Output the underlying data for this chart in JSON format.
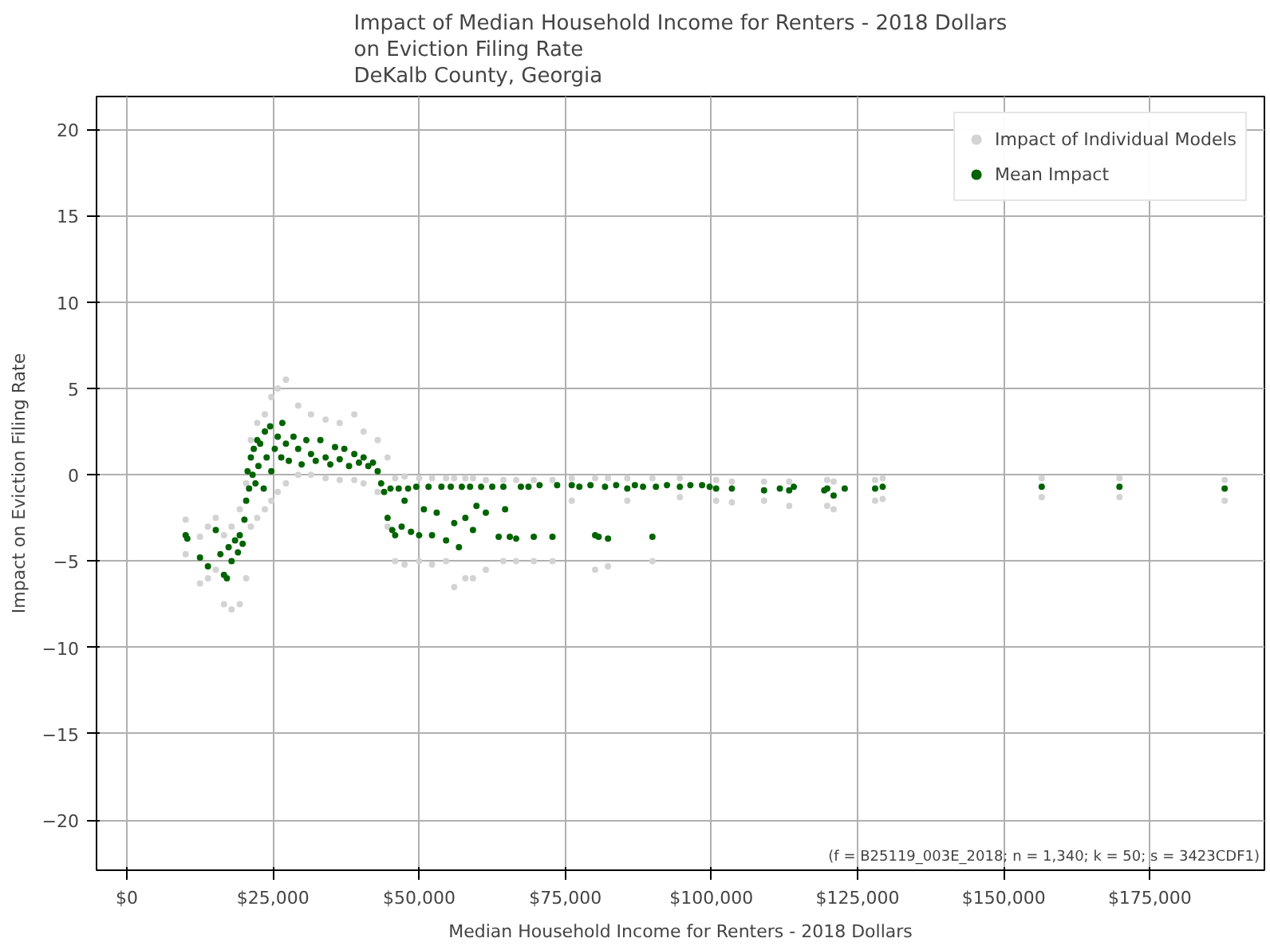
{
  "chart_data": {
    "type": "scatter",
    "title": "Impact of Median Household Income for Renters - 2018 Dollars\non Eviction Filing Rate\nDeKalb County, Georgia",
    "xlabel": "Median Household Income for Renters - 2018 Dollars",
    "ylabel": "Impact on Eviction Filing Rate",
    "annotations": [
      "(f = B25119_003E_2018; n = 1,340; k = 50; s = 3423CDF1)"
    ],
    "xlim": [
      -5200,
      194600
    ],
    "ylim": [
      -22.9,
      21.9
    ],
    "xticks": [
      {
        "value": 0,
        "label": "$0"
      },
      {
        "value": 25000,
        "label": "$25,000"
      },
      {
        "value": 50000,
        "label": "$50,000"
      },
      {
        "value": 75000,
        "label": "$75,000"
      },
      {
        "value": 100000,
        "label": "$100,000"
      },
      {
        "value": 125000,
        "label": "$125,000"
      },
      {
        "value": 150000,
        "label": "$150,000"
      },
      {
        "value": 175000,
        "label": "$175,000"
      }
    ],
    "yticks": [
      {
        "value": -20,
        "label": "−20"
      },
      {
        "value": -15,
        "label": "−15"
      },
      {
        "value": -10,
        "label": "−10"
      },
      {
        "value": -5,
        "label": "−5"
      },
      0,
      5,
      10,
      15,
      20
    ],
    "grid": true,
    "legend": "top right",
    "marker": "circle",
    "series": [
      {
        "name": "Impact of Individual Models",
        "color": "#d3d3d3",
        "x": [
          10050,
          10050,
          12500,
          12500,
          13860,
          13860,
          15200,
          15200,
          16600,
          16600,
          17900,
          17900,
          19300,
          19300,
          20400,
          20400,
          21200,
          21200,
          22300,
          22300,
          23600,
          23600,
          24700,
          24700,
          25800,
          25800,
          27200,
          27200,
          29300,
          29300,
          31500,
          31500,
          34000,
          34000,
          36400,
          36400,
          38900,
          38900,
          40500,
          40500,
          42900,
          42900,
          44600,
          44600,
          45900,
          45900,
          47500,
          47500,
          50000,
          50000,
          52200,
          52200,
          54600,
          54600,
          56000,
          56000,
          57900,
          57900,
          59200,
          59200,
          61400,
          61400,
          64400,
          64400,
          66600,
          66600,
          69600,
          69600,
          72800,
          72800,
          76100,
          76100,
          80100,
          80100,
          82300,
          82300,
          85600,
          85600,
          89900,
          89900,
          94600,
          94600,
          100800,
          100800,
          103500,
          103500,
          109000,
          109000,
          113300,
          113300,
          119800,
          119800,
          120900,
          120900,
          128000,
          128000,
          129300,
          129300,
          156500,
          156500,
          169800,
          169800,
          187800,
          187800
        ],
        "values": [
          -4.6,
          -2.6,
          -6.3,
          -3.6,
          -6.0,
          -3.0,
          -5.5,
          -2.5,
          -7.5,
          -3.5,
          -7.8,
          -3.0,
          -7.5,
          -2.0,
          -6.0,
          -0.5,
          -3.0,
          2.0,
          -2.5,
          3.0,
          -2.0,
          3.5,
          -1.5,
          4.5,
          -1.0,
          5.0,
          -0.5,
          5.5,
          0.0,
          4.0,
          0.0,
          3.5,
          -0.2,
          3.2,
          -0.3,
          3.0,
          -0.3,
          3.5,
          -0.5,
          2.5,
          -1.0,
          2.0,
          -3.0,
          1.0,
          -5.0,
          -0.2,
          -5.2,
          -0.1,
          -5.0,
          -0.2,
          -5.2,
          -0.2,
          -5.0,
          -0.2,
          -6.5,
          -0.2,
          -6.0,
          -0.2,
          -6.0,
          -0.2,
          -5.5,
          -0.3,
          -5.0,
          -0.3,
          -5.0,
          -0.3,
          -5.0,
          -0.3,
          -5.0,
          -0.3,
          -1.5,
          -0.2,
          -5.5,
          -0.2,
          -5.3,
          -0.2,
          -1.5,
          -0.2,
          -5.0,
          -0.2,
          -1.3,
          -0.2,
          -1.5,
          -0.3,
          -1.6,
          -0.4,
          -1.5,
          -0.4,
          -1.8,
          -0.4,
          -1.8,
          -0.3,
          -2.0,
          -0.4,
          -1.5,
          -0.3,
          -1.4,
          -0.2,
          -1.3,
          -0.2,
          -1.3,
          -0.2,
          -1.5,
          -0.3
        ]
      },
      {
        "name": "Mean Impact",
        "color": "#006400",
        "x": [
          10050,
          10330,
          12500,
          13860,
          15200,
          16000,
          16600,
          17100,
          17400,
          17900,
          18500,
          19000,
          19300,
          19800,
          20100,
          20400,
          20650,
          20900,
          21200,
          21500,
          21700,
          22000,
          22300,
          22500,
          22800,
          23400,
          23600,
          23900,
          24500,
          24700,
          25300,
          25800,
          26400,
          26600,
          27200,
          27700,
          28500,
          29300,
          29900,
          30700,
          31500,
          32300,
          33100,
          34000,
          34800,
          35600,
          36400,
          37200,
          38000,
          38900,
          39700,
          40500,
          41300,
          42100,
          42900,
          43500,
          44000,
          44600,
          45100,
          45400,
          45900,
          46500,
          47000,
          47500,
          48100,
          48600,
          49500,
          50000,
          50800,
          51600,
          52200,
          53000,
          53800,
          54600,
          55400,
          56000,
          56800,
          57300,
          57900,
          58700,
          59200,
          59800,
          60600,
          61400,
          62500,
          63600,
          64400,
          64700,
          65500,
          66600,
          67400,
          68700,
          69600,
          70600,
          72800,
          73600,
          76100,
          77400,
          79300,
          80100,
          80700,
          81800,
          82300,
          83700,
          85600,
          86900,
          88300,
          89900,
          90500,
          92400,
          94600,
          96400,
          98400,
          99700,
          100800,
          103500,
          109000,
          111700,
          113300,
          114100,
          119300,
          119800,
          120900,
          122800,
          128000,
          129300,
          156500,
          169800,
          187800
        ],
        "values": [
          -3.5,
          -3.7,
          -4.8,
          -5.3,
          -3.2,
          -4.6,
          -5.8,
          -6.0,
          -4.2,
          -5.0,
          -3.8,
          -4.5,
          -3.5,
          -4.0,
          -2.6,
          -1.5,
          0.2,
          -0.8,
          1.0,
          0.0,
          1.5,
          -0.5,
          2.0,
          0.5,
          1.8,
          -0.8,
          2.5,
          1.0,
          2.8,
          0.2,
          1.5,
          2.2,
          1.0,
          3.0,
          1.8,
          0.8,
          2.2,
          1.5,
          0.6,
          2.0,
          1.2,
          0.8,
          2.0,
          1.0,
          0.6,
          1.6,
          0.9,
          1.5,
          0.5,
          1.2,
          0.7,
          1.0,
          0.5,
          0.7,
          0.2,
          -0.5,
          -1.0,
          -2.5,
          -0.8,
          -3.2,
          -3.5,
          -0.8,
          -3.0,
          -1.5,
          -0.8,
          -3.3,
          -0.7,
          -3.5,
          -2.0,
          -0.7,
          -3.5,
          -2.2,
          -0.7,
          -3.8,
          -0.7,
          -2.8,
          -4.2,
          -0.7,
          -2.5,
          -0.7,
          -3.2,
          -1.8,
          -0.7,
          -2.2,
          -0.7,
          -3.6,
          -0.7,
          -2.0,
          -3.6,
          -3.7,
          -0.7,
          -0.7,
          -3.6,
          -0.6,
          -3.6,
          -0.6,
          -0.6,
          -0.7,
          -0.6,
          -3.5,
          -3.6,
          -0.7,
          -3.7,
          -0.6,
          -0.8,
          -0.6,
          -0.7,
          -3.6,
          -0.7,
          -0.6,
          -0.7,
          -0.6,
          -0.6,
          -0.7,
          -0.8,
          -0.8,
          -0.9,
          -0.8,
          -0.9,
          -0.7,
          -0.9,
          -0.8,
          -1.2,
          -0.8,
          -0.8,
          -0.7,
          -0.7,
          -0.7,
          -0.8
        ]
      }
    ]
  }
}
